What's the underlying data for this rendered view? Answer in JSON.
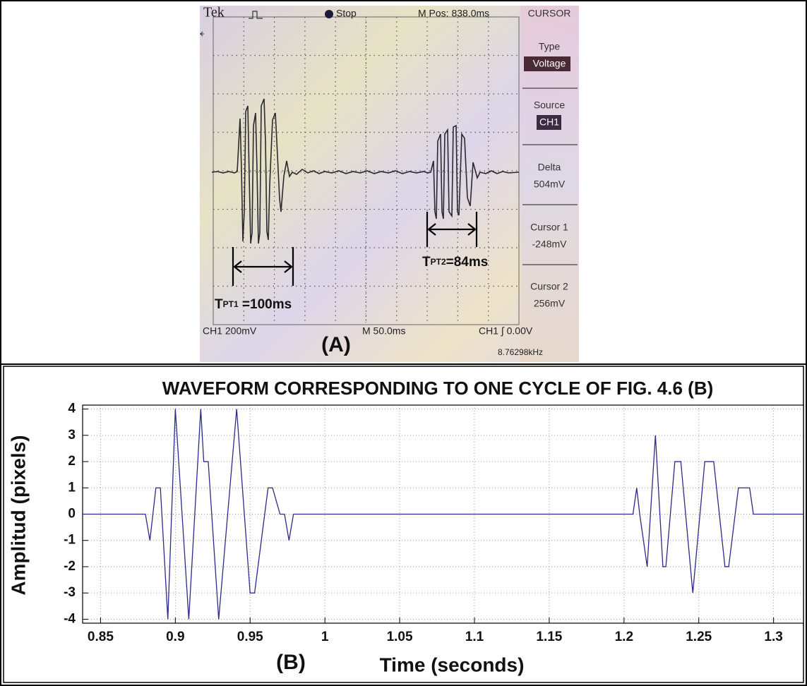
{
  "scope": {
    "brand": "Tek",
    "trigger_state": "Stop",
    "position": "M Pos: 838.0ms",
    "menu_title": "CURSOR",
    "menu": [
      {
        "label": "Type",
        "value": "Voltage"
      },
      {
        "label": "Source",
        "value": "CH1"
      },
      {
        "label": "Delta",
        "value": "504mV"
      },
      {
        "label": "Cursor 1",
        "value": "-248mV"
      },
      {
        "label": "Cursor 2",
        "value": "256mV"
      }
    ],
    "channel_scale": "CH1  200mV",
    "timebase": "M 50.0ms",
    "trigger": "CH1 ∫ 0.00V",
    "frequency": "8.76298kHz",
    "annotations": [
      {
        "main": "T",
        "sub": "PT1",
        "rest": " =100ms"
      },
      {
        "main": "T",
        "sub": "PT2",
        "rest": "=84ms"
      }
    ],
    "panel_label": "(A)"
  },
  "chart_data": {
    "type": "line",
    "title": "WAVEFORM CORRESPONDING TO ONE CYCLE OF FIG. 4.6 (B)",
    "xlabel": "Time (seconds)",
    "ylabel": "Amplitud (pixels)",
    "panel_label": "(B)",
    "color": "#2b2b8c",
    "x": [
      0.838,
      0.88,
      0.883,
      0.887,
      0.89,
      0.895,
      0.9,
      0.909,
      0.917,
      0.919,
      0.922,
      0.929,
      0.941,
      0.95,
      0.953,
      0.962,
      0.965,
      0.97,
      0.973,
      0.976,
      0.979,
      1.206,
      1.2085,
      1.2105,
      1.2155,
      1.221,
      1.226,
      1.228,
      1.234,
      1.238,
      1.246,
      1.254,
      1.26,
      1.2675,
      1.27,
      1.2765,
      1.284,
      1.2865,
      1.32
    ],
    "values": [
      0,
      0,
      -1,
      1,
      1,
      -4,
      4,
      -4,
      4,
      2,
      2,
      -4,
      4,
      -3,
      -3,
      1,
      1,
      0,
      0,
      -1,
      0,
      0,
      1,
      0,
      -2,
      3,
      -2,
      -2,
      2,
      2,
      -3,
      2,
      2,
      -2,
      -2,
      1,
      1,
      0,
      0
    ],
    "xlim": [
      0.838,
      1.32
    ],
    "ylim": [
      -4.15,
      4.15
    ],
    "xticks": [
      0.85,
      0.9,
      0.95,
      1,
      1.05,
      1.1,
      1.15,
      1.2,
      1.25,
      1.3
    ],
    "yticks": [
      -4,
      -3,
      -2,
      -1,
      0,
      1,
      2,
      3,
      4
    ],
    "grid": true
  }
}
